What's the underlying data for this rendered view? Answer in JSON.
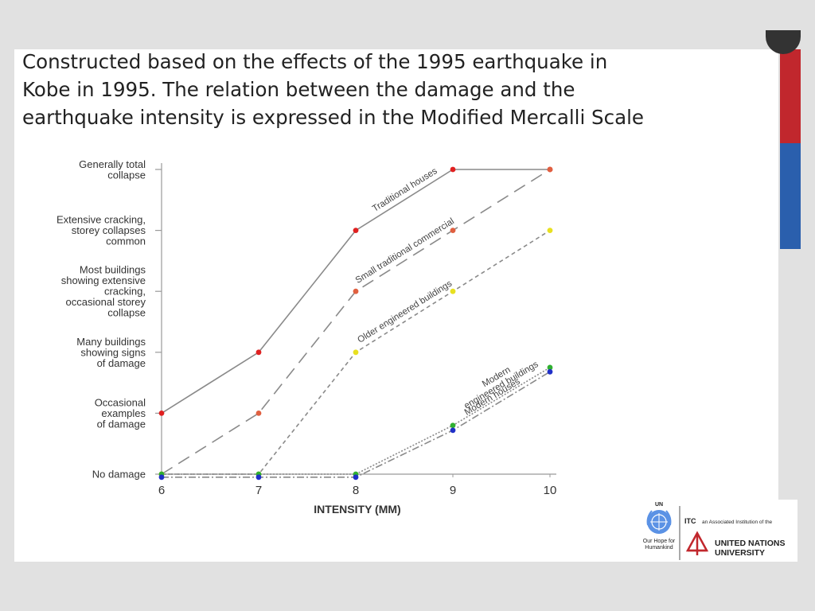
{
  "slide": {
    "title_lines": [
      "Constructed based on the effects of the 1995 earthquake in",
      "Kobe in 1995. The relation between the damage and the",
      "earthquake intensity is expressed in the Modified Mercalli Scale"
    ]
  },
  "chart_data": {
    "type": "line",
    "xlabel": "INTENSITY (MM)",
    "x": [
      6,
      7,
      8,
      9,
      10
    ],
    "xlim": [
      6,
      10
    ],
    "y_levels": [
      [
        "No damage"
      ],
      [
        "Occasional",
        "examples",
        "of damage"
      ],
      [
        "Many buildings",
        "showing signs",
        "of damage"
      ],
      [
        "Most buildings",
        "showing extensive",
        "cracking,",
        "occasional storey",
        "collapse"
      ],
      [
        "Extensive cracking,",
        "storey collapses",
        "common"
      ],
      [
        "Generally total",
        "collapse"
      ]
    ],
    "ylim": [
      0,
      5
    ],
    "series": [
      {
        "name": "Traditional houses",
        "values": [
          1,
          2,
          4,
          5,
          5
        ],
        "line_color": "#8a8a8a",
        "marker_color": "#e02020",
        "dash": "solid",
        "label_lines": [
          "Traditional houses"
        ]
      },
      {
        "name": "Small traditional commercial",
        "values": [
          0,
          1,
          3,
          4,
          5
        ],
        "line_color": "#8a8a8a",
        "marker_color": "#e06040",
        "dash": "longdash",
        "label_lines": [
          "Small traditional commercial"
        ]
      },
      {
        "name": "Older engineered buildings",
        "values": [
          0,
          0,
          2,
          3,
          4
        ],
        "line_color": "#8a8a8a",
        "marker_color": "#e8e020",
        "dash": "shortdash",
        "label_lines": [
          "Older engineered buildings"
        ]
      },
      {
        "name": "Modern engineered buildings",
        "values": [
          0,
          0,
          0,
          0.8,
          1.75
        ],
        "line_color": "#8a8a8a",
        "marker_color": "#30b030",
        "dash": "dotted",
        "label_lines": [
          "Modern",
          "engineered buildings"
        ]
      },
      {
        "name": "Modern houses",
        "values": [
          -0.05,
          -0.05,
          -0.05,
          0.72,
          1.68
        ],
        "line_color": "#8a8a8a",
        "marker_color": "#2030c8",
        "dash": "dashdot",
        "label_lines": [
          "Modern houses"
        ]
      }
    ]
  },
  "logo": {
    "un_top": "UN",
    "un_caption_1": "Our Hope for",
    "un_caption_2": "Humankind",
    "itc_bold": "ITC",
    "itc_text": "an Associated Institution of the",
    "unu_line1": "UNITED NATIONS",
    "unu_line2": "UNIVERSITY"
  }
}
